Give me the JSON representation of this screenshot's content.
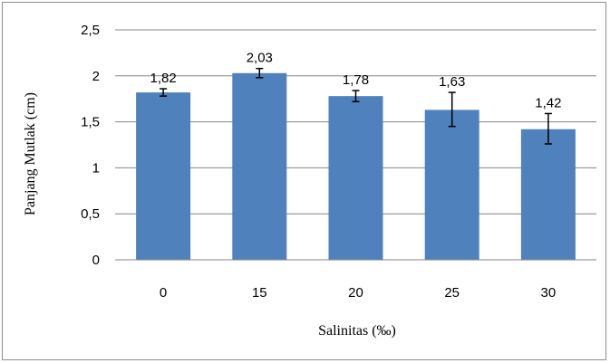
{
  "chart_data": {
    "type": "bar",
    "title": "",
    "xlabel": "Salinitas (‰)",
    "ylabel": "Panjang Mutlak (cm)",
    "categories": [
      "0",
      "15",
      "20",
      "25",
      "30"
    ],
    "values": [
      1.82,
      2.03,
      1.78,
      1.63,
      1.42
    ],
    "value_labels": [
      "1,82",
      "2,03",
      "1,78",
      "1,63",
      "1,42"
    ],
    "error_bars": [
      [
        1.78,
        1.86
      ],
      [
        1.98,
        2.08
      ],
      [
        1.72,
        1.84
      ],
      [
        1.45,
        1.82
      ],
      [
        1.26,
        1.59
      ]
    ],
    "ylim": [
      0,
      2.5
    ],
    "yticks": [
      0,
      0.5,
      1,
      1.5,
      2,
      2.5
    ],
    "ytick_labels": [
      "0",
      "0,5",
      "1",
      "1,5",
      "2",
      "2,5"
    ],
    "grid": true,
    "legend": "none",
    "colors": {
      "bar": "#4f81bd",
      "grid": "#868686",
      "error": "#000000"
    }
  }
}
